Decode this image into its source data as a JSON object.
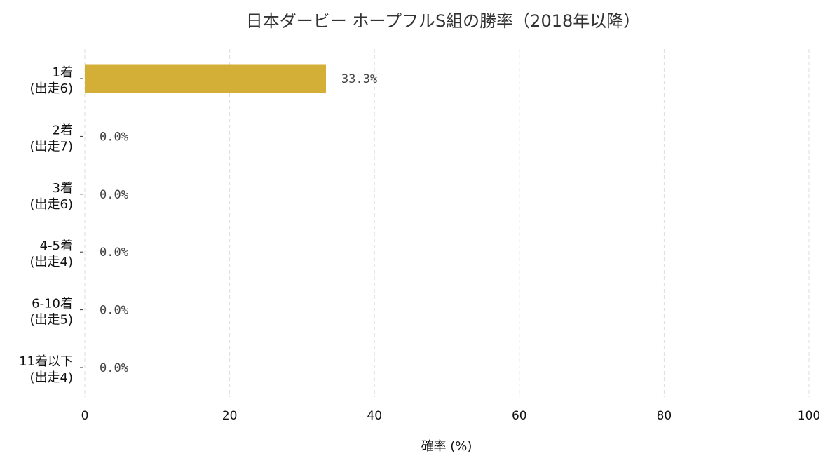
{
  "chart_data": {
    "type": "bar",
    "orientation": "horizontal",
    "title": "日本ダービー ホープフルS組の勝率（2018年以降）",
    "xlabel": "確率 (%)",
    "ylabel": "",
    "xlim": [
      0,
      100
    ],
    "xticks": [
      "0",
      "20",
      "40",
      "60",
      "80",
      "100"
    ],
    "grid": "vertical dashed",
    "bar_color": "#d4af37",
    "categories": [
      {
        "line1": "1着",
        "line2": "(出走6)"
      },
      {
        "line1": "2着",
        "line2": "(出走7)"
      },
      {
        "line1": "3着",
        "line2": "(出走6)"
      },
      {
        "line1": "4-5着",
        "line2": "(出走4)"
      },
      {
        "line1": "6-10着",
        "line2": "(出走5)"
      },
      {
        "line1": "11着以下",
        "line2": "(出走4)"
      }
    ],
    "values": [
      33.3,
      0.0,
      0.0,
      0.0,
      0.0,
      0.0
    ],
    "value_labels": [
      "33.3%",
      "0.0%",
      "0.0%",
      "0.0%",
      "0.0%",
      "0.0%"
    ]
  }
}
